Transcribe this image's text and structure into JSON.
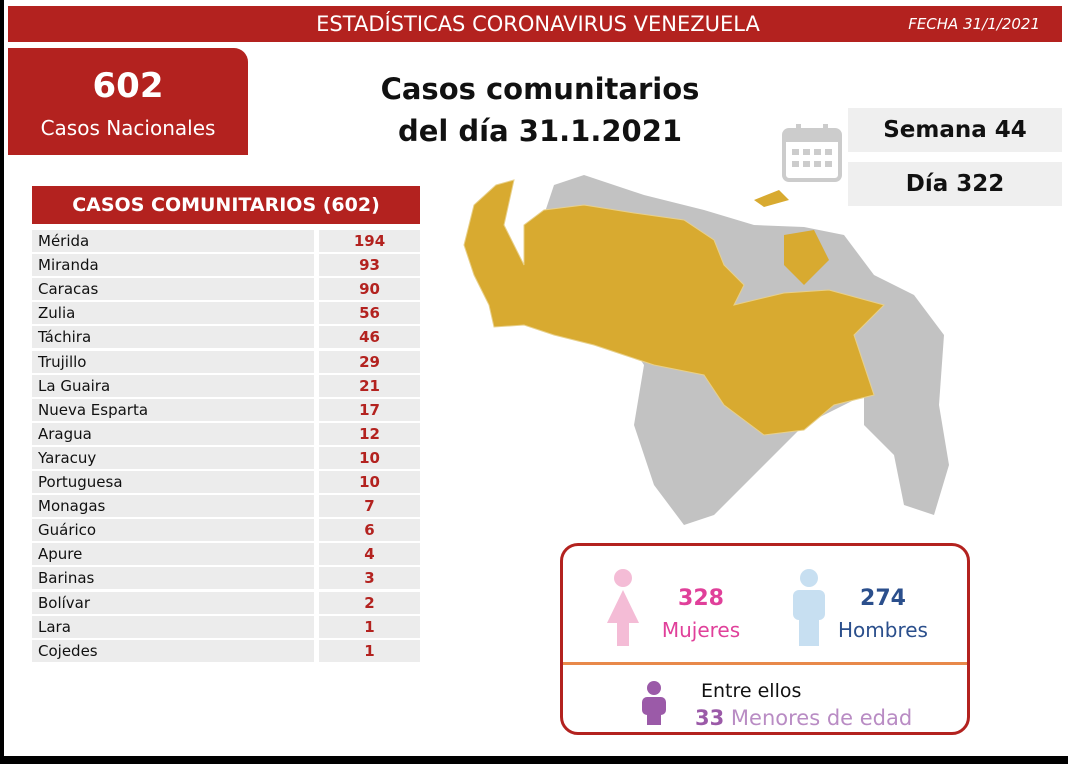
{
  "header": {
    "title": "ESTADÍSTICAS CORONAVIRUS VENEZUELA",
    "date": "FECHA 31/1/2021"
  },
  "national": {
    "count": 602,
    "label": "Casos Nacionales"
  },
  "headline": {
    "line1": "Casos comunitarios",
    "line2": "del día 31.1.2021"
  },
  "week": "Semana 44",
  "day": "Día 322",
  "table": {
    "title": "CASOS COMUNITARIOS (602)",
    "rows": [
      [
        "Mérida",
        194
      ],
      [
        "Miranda",
        93
      ],
      [
        "Caracas",
        90
      ],
      [
        "Zulia",
        56
      ],
      [
        "Táchira",
        46
      ],
      [
        "Trujillo",
        29
      ],
      [
        "La Guaira",
        21
      ],
      [
        "Nueva Esparta",
        17
      ],
      [
        "Aragua",
        12
      ],
      [
        "Yaracuy",
        10
      ],
      [
        "Portuguesa",
        10
      ],
      [
        "Monagas",
        7
      ],
      [
        "Guárico",
        6
      ],
      [
        "Apure",
        4
      ],
      [
        "Barinas",
        3
      ],
      [
        "Bolívar",
        2
      ],
      [
        "Lara",
        1
      ],
      [
        "Cojedes",
        1
      ]
    ]
  },
  "gender": {
    "women": {
      "count": 328,
      "label": "Mujeres"
    },
    "men": {
      "count": 274,
      "label": "Hombres"
    }
  },
  "minors": {
    "intro": "Entre ellos",
    "count": 33,
    "label": "Menores de edad"
  }
}
